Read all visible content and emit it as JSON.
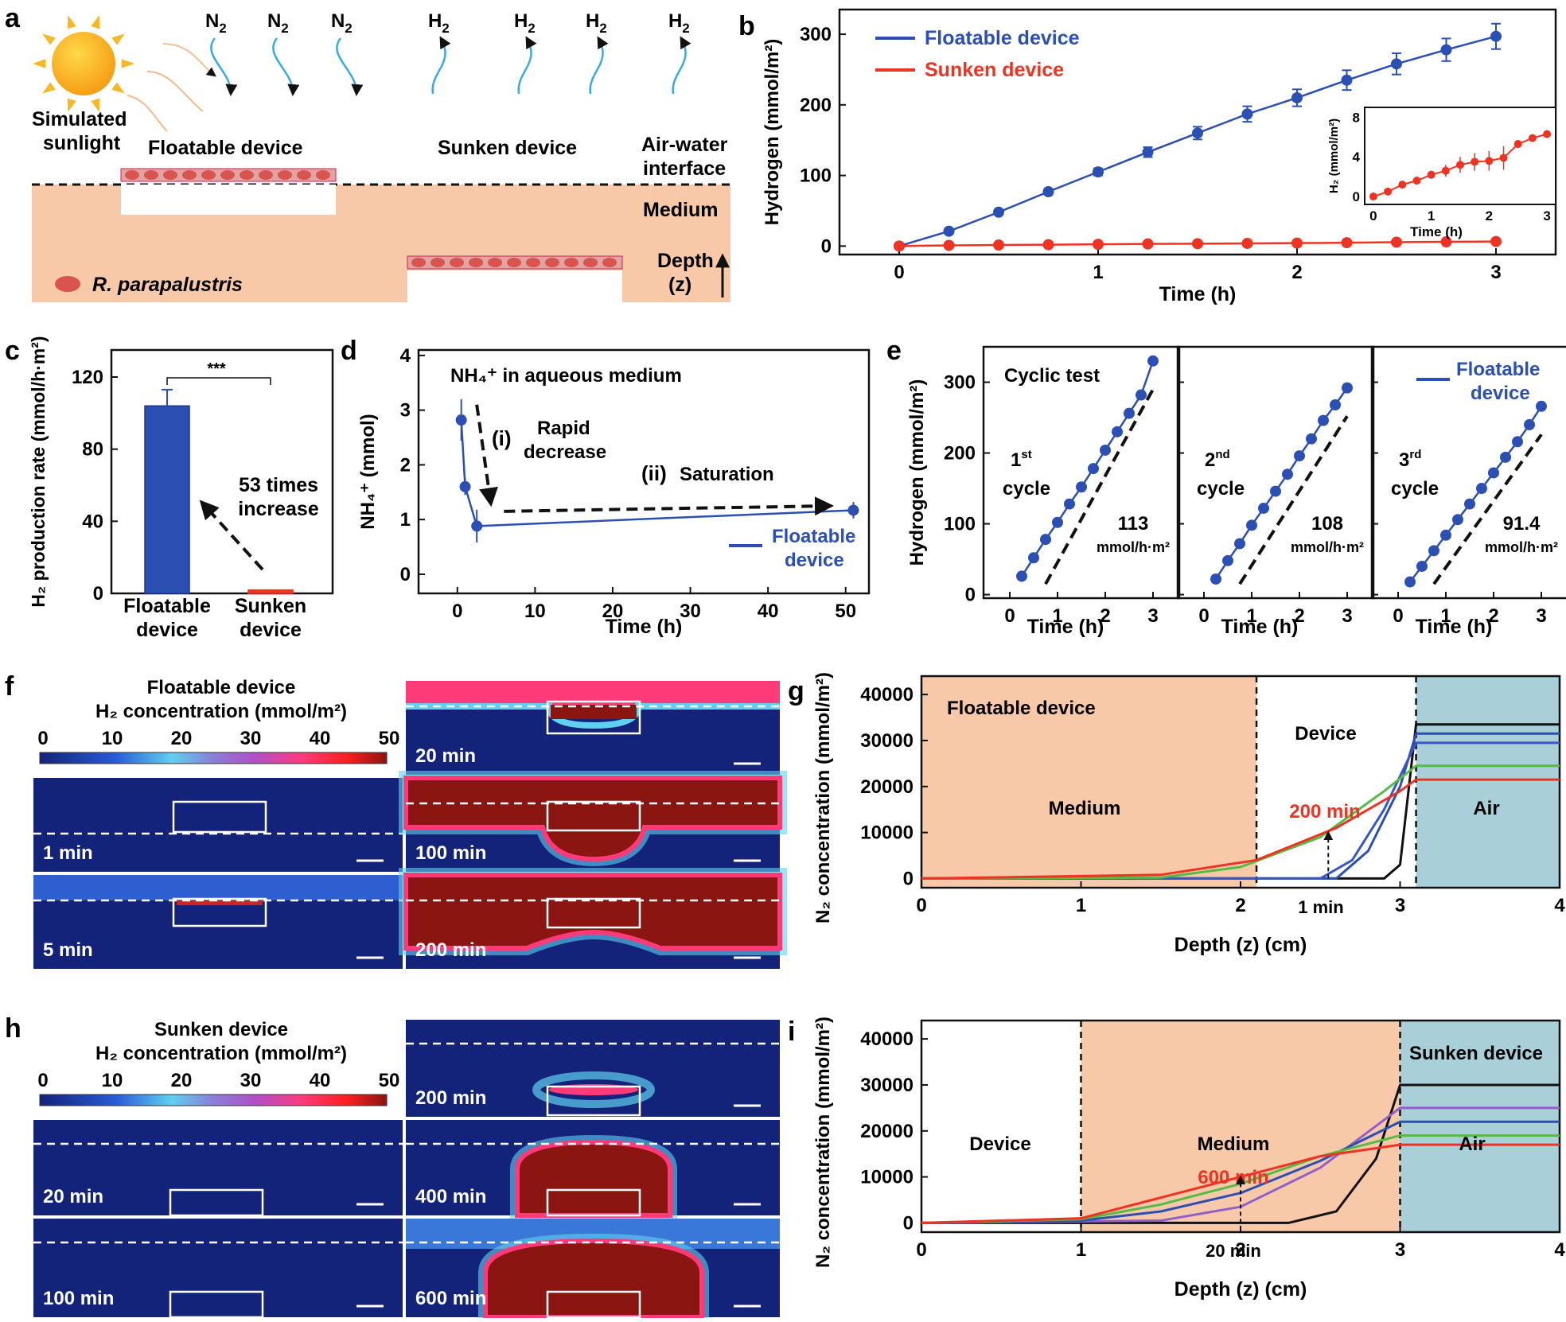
{
  "panel_letters": [
    "a",
    "b",
    "c",
    "d",
    "e",
    "f",
    "g",
    "h",
    "i"
  ],
  "panel_a": {
    "sun_label_1": "Simulated",
    "sun_label_2": "sunlight",
    "floatable_label": "Floatable device",
    "sunken_label": "Sunken device",
    "interface_label_1": "Air-water",
    "interface_label_2": "interface",
    "medium_label": "Medium",
    "depth_label_1": "Depth",
    "depth_label_2": "(z)",
    "organism_label": "R. parapalustris",
    "n2_labels": [
      "N2",
      "N2",
      "N2"
    ],
    "h2_labels": [
      "H2",
      "H2",
      "H2",
      "H2"
    ]
  },
  "colors": {
    "floatable": "#2b4fb3",
    "sunken": "#ee3322",
    "medium": "#f8c9a8",
    "air": "#a9cfd8",
    "field_low": "#13237a",
    "field_high": "#8b1510"
  },
  "chart_data": [
    {
      "id": "b",
      "type": "line",
      "xlabel": "Time (h)",
      "ylabel": "Hydrogen (mmol/m²)",
      "xlim": [
        -0.3,
        3.3
      ],
      "ylim": [
        -12,
        335
      ],
      "xticks": [
        0,
        1,
        2,
        3
      ],
      "yticks": [
        0,
        100,
        200,
        300
      ],
      "legend": "top-left",
      "series": [
        {
          "name": "Floatable device",
          "color": "#2b4fb3",
          "x": [
            0,
            0.25,
            0.5,
            0.75,
            1,
            1.25,
            1.5,
            1.75,
            2,
            2.25,
            2.5,
            2.75,
            3
          ],
          "y": [
            0,
            21,
            48,
            77,
            105,
            133,
            160,
            187,
            210,
            235,
            258,
            278,
            297
          ],
          "err": [
            0,
            3,
            3,
            4,
            5,
            7,
            9,
            11,
            12,
            14,
            15,
            16,
            18
          ]
        },
        {
          "name": "Sunken device",
          "color": "#ee3322",
          "x": [
            0,
            0.25,
            0.5,
            0.75,
            1,
            1.25,
            1.5,
            1.75,
            2,
            2.25,
            2.5,
            2.75,
            3
          ],
          "y": [
            0,
            1,
            1.5,
            2,
            2.5,
            3,
            3.4,
            3.8,
            4.2,
            4.8,
            5.5,
            6,
            6.5
          ]
        }
      ],
      "inset": {
        "xlabel": "Time (h)",
        "ylabel": "H₂ (mmol/m²)",
        "xticks": [
          0,
          1,
          2,
          3
        ],
        "yticks": [
          0,
          4,
          8
        ],
        "x": [
          0,
          0.25,
          0.5,
          0.75,
          1,
          1.25,
          1.5,
          1.75,
          2,
          2.25,
          2.5,
          2.75,
          3
        ],
        "y": [
          0,
          0.5,
          1.2,
          1.6,
          2.2,
          2.6,
          3.2,
          3.5,
          3.6,
          3.9,
          5.3,
          5.9,
          6.3
        ],
        "err": [
          0,
          0.2,
          0.3,
          0.4,
          0.4,
          0.6,
          0.8,
          0.9,
          1.0,
          1.2,
          0.4,
          0.3,
          0.3
        ]
      }
    },
    {
      "id": "c",
      "type": "bar",
      "ylabel": "H₂ production rate (mmol/h·m²)",
      "categories": [
        [
          "Floatable",
          "device"
        ],
        [
          "Sunken",
          "device"
        ]
      ],
      "values": [
        104,
        1.9
      ],
      "err": [
        9,
        0
      ],
      "ylim": [
        0,
        135
      ],
      "yticks": [
        0,
        40,
        80,
        120
      ],
      "significance": "***",
      "annotation": [
        "53 times",
        "increase"
      ]
    },
    {
      "id": "d",
      "type": "line",
      "xlabel": "Time (h)",
      "ylabel": "NH₄⁺ (mmol)",
      "xlim": [
        -5,
        53
      ],
      "ylim": [
        -0.35,
        4.1
      ],
      "xticks": [
        0,
        10,
        20,
        30,
        40,
        50
      ],
      "yticks": [
        0,
        1,
        2,
        3,
        4
      ],
      "title": "NH₄⁺ in aqueous medium",
      "annotations": [
        "(i)",
        "Rapid",
        "decrease",
        "(ii)",
        "Saturation"
      ],
      "series": [
        {
          "name": "Floatable device",
          "color": "#2b4fb3",
          "x": [
            0.5,
            1,
            2.5,
            51
          ],
          "y": [
            2.82,
            1.6,
            0.88,
            1.17
          ],
          "err": [
            0.38,
            0.15,
            0.3,
            0.15
          ]
        }
      ]
    },
    {
      "id": "e",
      "type": "line",
      "ylabel": "Hydrogen (mmol/m²)",
      "xlabel": "Time (h)",
      "title": "Cyclic test",
      "ylim": [
        -5,
        350
      ],
      "yticks": [
        0,
        100,
        200,
        300
      ],
      "xticks": [
        0,
        1,
        2,
        3
      ],
      "legend": "Floatable device",
      "cycles": [
        {
          "ordinal": "1",
          "sup": "st",
          "word": "cycle",
          "rate": "113",
          "unit": "mmol/h·m²",
          "x": [
            0.25,
            0.5,
            0.75,
            1,
            1.25,
            1.5,
            1.75,
            2,
            2.25,
            2.5,
            2.75,
            3
          ],
          "y": [
            26,
            52,
            78,
            102,
            128,
            152,
            178,
            204,
            230,
            256,
            282,
            330
          ]
        },
        {
          "ordinal": "2",
          "sup": "nd",
          "word": "cycle",
          "rate": "108",
          "unit": "mmol/h·m²",
          "x": [
            0.25,
            0.5,
            0.75,
            1,
            1.25,
            1.5,
            1.75,
            2,
            2.25,
            2.5,
            2.75,
            3
          ],
          "y": [
            22,
            48,
            72,
            98,
            122,
            146,
            170,
            196,
            220,
            246,
            268,
            292
          ]
        },
        {
          "ordinal": "3",
          "sup": "rd",
          "word": "cycle",
          "rate": "91.4",
          "unit": "mmol/h·m²",
          "x": [
            0.25,
            0.5,
            0.75,
            1,
            1.25,
            1.5,
            1.75,
            2,
            2.25,
            2.5,
            2.75,
            3
          ],
          "y": [
            18,
            40,
            62,
            84,
            106,
            128,
            150,
            172,
            194,
            216,
            240,
            266
          ]
        }
      ]
    },
    {
      "id": "g",
      "type": "line",
      "xlabel": "Depth (z) (cm)",
      "ylabel": "N₂ concentration (mmol/m²)",
      "xlim": [
        0,
        4
      ],
      "ylim": [
        -2000,
        44000
      ],
      "xticks": [
        0,
        1,
        2,
        3,
        4
      ],
      "yticks": [
        0,
        10000,
        20000,
        30000,
        40000
      ],
      "regions": [
        {
          "label": "Medium",
          "from": 0,
          "to": 2.1,
          "color": "#f8c9a8"
        },
        {
          "label": "Device",
          "from": 2.1,
          "to": 3.1,
          "color": "#ffffff"
        },
        {
          "label": "Air",
          "from": 3.1,
          "to": 4,
          "color": "#a9cfd8"
        }
      ],
      "title_label": "Floatable device",
      "time_labels": [
        "200 min",
        "1 min"
      ],
      "series": [
        {
          "color": "#111111",
          "points": [
            [
              0,
              0
            ],
            [
              2.9,
              0
            ],
            [
              3.0,
              3000
            ],
            [
              3.1,
              33500
            ],
            [
              4,
              33500
            ]
          ]
        },
        {
          "color": "#2b4fb3",
          "points": [
            [
              0,
              0
            ],
            [
              2.6,
              0
            ],
            [
              2.8,
              6000
            ],
            [
              3.0,
              20000
            ],
            [
              3.1,
              31500
            ],
            [
              4,
              31500
            ]
          ]
        },
        {
          "color": "#3a55c8",
          "points": [
            [
              0,
              0
            ],
            [
              2.5,
              0
            ],
            [
              2.7,
              4000
            ],
            [
              2.9,
              15000
            ],
            [
              3.1,
              29500
            ],
            [
              4,
              29500
            ]
          ]
        },
        {
          "color": "#55bb44",
          "points": [
            [
              0,
              0
            ],
            [
              1.5,
              200
            ],
            [
              2.0,
              2500
            ],
            [
              2.5,
              9000
            ],
            [
              2.9,
              19000
            ],
            [
              3.1,
              24500
            ],
            [
              4,
              24500
            ]
          ]
        },
        {
          "color": "#ee3322",
          "points": [
            [
              0,
              0
            ],
            [
              1.5,
              800
            ],
            [
              2.1,
              4000
            ],
            [
              2.6,
              11000
            ],
            [
              3.0,
              19000
            ],
            [
              3.1,
              21500
            ],
            [
              4,
              21500
            ]
          ]
        }
      ]
    },
    {
      "id": "i",
      "type": "line",
      "xlabel": "Depth (z) (cm)",
      "ylabel": "N₂ concentration (mmol/m²)",
      "xlim": [
        0,
        4
      ],
      "ylim": [
        -2000,
        44000
      ],
      "xticks": [
        0,
        1,
        2,
        3,
        4
      ],
      "yticks": [
        0,
        10000,
        20000,
        30000,
        40000
      ],
      "regions": [
        {
          "label": "Device",
          "from": 0,
          "to": 1,
          "color": "#ffffff"
        },
        {
          "label": "Medium",
          "from": 1,
          "to": 3,
          "color": "#f8c9a8"
        },
        {
          "label": "Air",
          "from": 3,
          "to": 4,
          "color": "#a9cfd8"
        }
      ],
      "title_label": "Sunken device",
      "time_labels": [
        "600 min",
        "20 min"
      ],
      "series": [
        {
          "color": "#111111",
          "points": [
            [
              0,
              0
            ],
            [
              2.3,
              0
            ],
            [
              2.6,
              2500
            ],
            [
              2.85,
              14000
            ],
            [
              3,
              30000
            ],
            [
              4,
              30000
            ]
          ]
        },
        {
          "color": "#9060c8",
          "points": [
            [
              0,
              0
            ],
            [
              1.5,
              500
            ],
            [
              2,
              3500
            ],
            [
              2.5,
              12000
            ],
            [
              3,
              25000
            ],
            [
              4,
              25000
            ]
          ]
        },
        {
          "color": "#2b4fb3",
          "points": [
            [
              0,
              0
            ],
            [
              1,
              500
            ],
            [
              1.5,
              2500
            ],
            [
              2,
              6500
            ],
            [
              2.5,
              13500
            ],
            [
              3,
              22000
            ],
            [
              4,
              22000
            ]
          ]
        },
        {
          "color": "#55bb44",
          "points": [
            [
              0,
              0
            ],
            [
              1,
              800
            ],
            [
              1.5,
              4000
            ],
            [
              2,
              8500
            ],
            [
              2.5,
              14500
            ],
            [
              3,
              19000
            ],
            [
              4,
              19000
            ]
          ]
        },
        {
          "color": "#ee3322",
          "points": [
            [
              0,
              0
            ],
            [
              1,
              1000
            ],
            [
              1.5,
              5500
            ],
            [
              2,
              10000
            ],
            [
              2.5,
              14500
            ],
            [
              3,
              17000
            ],
            [
              4,
              17000
            ]
          ]
        }
      ]
    }
  ],
  "panel_f": {
    "title_1": "Floatable device",
    "title_2": "H₂ concentration (mmol/m²)",
    "scale_ticks": [
      "0",
      "10",
      "20",
      "30",
      "40",
      "50"
    ],
    "frames": [
      "1 min",
      "5 min",
      "20 min",
      "100 min",
      "200 min"
    ]
  },
  "panel_h": {
    "title_1": "Sunken device",
    "title_2": "H₂ concentration (mmol/m²)",
    "scale_ticks": [
      "0",
      "10",
      "20",
      "30",
      "40",
      "50"
    ],
    "frames": [
      "20 min",
      "100 min",
      "200 min",
      "400 min",
      "600 min"
    ]
  }
}
